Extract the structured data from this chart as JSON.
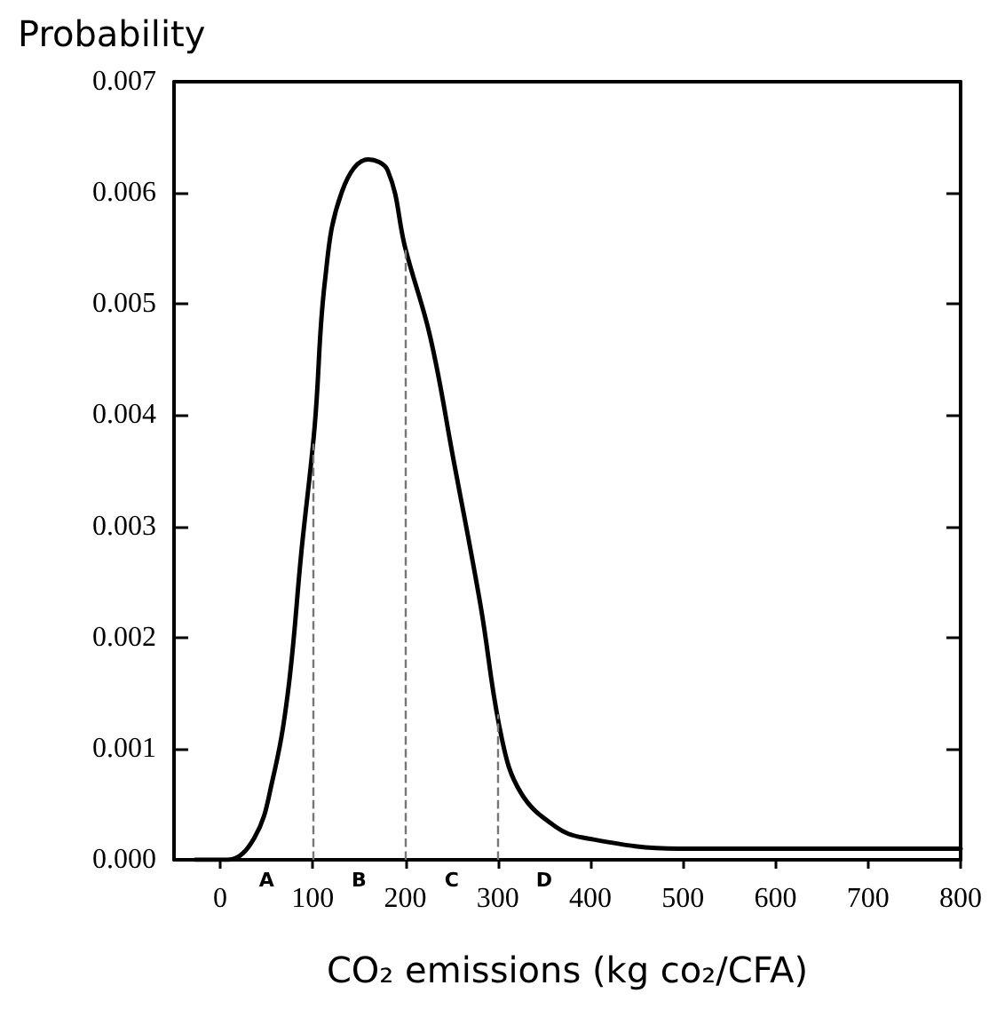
{
  "chart_data": {
    "type": "line",
    "title": "Probability",
    "xlabel": "CO₂ emissions (kg co₂/CFA)",
    "series": [
      {
        "color": "#000000",
        "x": [
          -27,
          8,
          37,
          56,
          73,
          88,
          102,
          113,
          131,
          160,
          181,
          200,
          227,
          252,
          281,
          304,
          325,
          362,
          392,
          496,
          790,
          800
        ],
        "values": [
          0,
          0,
          0.0002,
          0.0007,
          0.0015,
          0.0028,
          0.0039,
          0.0052,
          0.006,
          0.0063,
          0.0062,
          0.0055,
          0.0047,
          0.0036,
          0.0023,
          0.0011,
          0.0006,
          0.0003,
          0.0002,
          0.0001,
          0.0001,
          0.0001
        ]
      }
    ],
    "xlim": [
      -50,
      800
    ],
    "xticks": [
      0,
      100,
      200,
      300,
      400,
      500,
      600,
      700,
      800
    ],
    "ylim": [
      0,
      0.007
    ],
    "yticks": [
      {
        "value": 0,
        "label": "0.000"
      },
      {
        "value": 0.001,
        "label": "0.001"
      },
      {
        "value": 0.002,
        "label": "0.002"
      },
      {
        "value": 0.003,
        "label": "0.003"
      },
      {
        "value": 0.004,
        "label": "0.004"
      },
      {
        "value": 0.005,
        "label": "0.005"
      },
      {
        "value": 0.006,
        "label": "0.006"
      },
      {
        "value": 0.007,
        "label": "0.007"
      }
    ],
    "ref_lines": [
      {
        "axis": "x",
        "value": 100,
        "color": "#777777",
        "line_style": "dashed"
      },
      {
        "axis": "x",
        "value": 200,
        "color": "#777777",
        "line_style": "dashed"
      },
      {
        "axis": "x",
        "value": 300,
        "color": "#777777",
        "line_style": "dashed"
      }
    ],
    "annotations": [
      "A",
      "B",
      "C",
      "D"
    ],
    "grid": false,
    "marker": "none",
    "line_style": "solid"
  }
}
